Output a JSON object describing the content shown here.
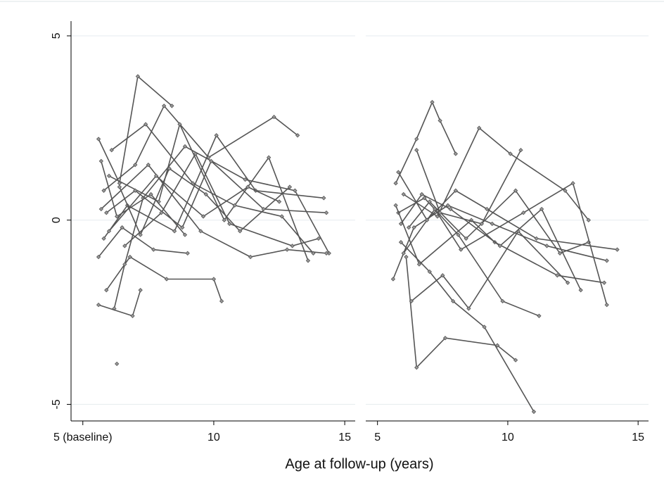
{
  "chart_data": [
    {
      "type": "line",
      "xlabel": "Age at follow-up (years)",
      "color": "#555555",
      "xlim": [
        4.55,
        15.4
      ],
      "xticks": [
        {
          "value": 5,
          "label": "5 (baseline)"
        },
        10,
        15
      ],
      "ylim": [
        -5.45,
        5.4
      ],
      "yticks": [
        5,
        0,
        -5
      ],
      "grid": true,
      "series": [
        {
          "x": [
            5.6,
            6.4,
            7.1,
            8.4
          ],
          "values": [
            2.2,
            1.0,
            3.9,
            3.1
          ]
        },
        {
          "x": [
            5.8,
            7.0,
            8.1,
            9.8,
            12.3,
            13.2
          ],
          "values": [
            0.8,
            1.5,
            3.1,
            1.7,
            2.8,
            2.3
          ]
        },
        {
          "x": [
            5.9,
            6.8,
            8.2,
            10.0,
            10.3
          ],
          "values": [
            -1.9,
            -1.0,
            -1.6,
            -1.6,
            -2.2
          ]
        },
        {
          "x": [
            6.2,
            6.6,
            7.3,
            8.9,
            11.2,
            13.1,
            14.4
          ],
          "values": [
            -2.4,
            -1.2,
            0.6,
            2.0,
            1.1,
            0.8,
            -0.9
          ]
        },
        {
          "x": [
            5.6,
            6.9,
            7.2
          ],
          "values": [
            -2.3,
            -2.6,
            -1.9
          ]
        },
        {
          "x": [
            6.3
          ],
          "values": [
            -3.9
          ]
        },
        {
          "x": [
            5.7,
            7.5,
            9.5,
            11.4,
            12.8,
            14.3
          ],
          "values": [
            0.3,
            1.5,
            -0.3,
            -1.0,
            -0.8,
            -0.9
          ]
        },
        {
          "x": [
            6.0,
            7.9,
            8.7,
            10.4,
            12.1,
            13.6
          ],
          "values": [
            1.2,
            0.5,
            2.6,
            0.0,
            1.7,
            -1.1
          ]
        },
        {
          "x": [
            5.8,
            6.7,
            8.5,
            10.1,
            11.6,
            14.2
          ],
          "values": [
            -0.5,
            0.4,
            -0.3,
            2.3,
            0.8,
            0.6
          ]
        },
        {
          "x": [
            6.1,
            7.4,
            9.2,
            10.8,
            12.6,
            13.8
          ],
          "values": [
            1.9,
            2.6,
            1.0,
            0.4,
            0.1,
            -0.9
          ]
        },
        {
          "x": [
            5.6,
            6.5,
            7.7,
            9.0
          ],
          "values": [
            -1.0,
            -0.2,
            -0.8,
            -0.9
          ]
        },
        {
          "x": [
            6.4,
            7.2,
            8.3,
            9.7,
            11.0,
            12.9
          ],
          "values": [
            0.9,
            -0.4,
            1.4,
            0.7,
            -0.3,
            0.9
          ]
        },
        {
          "x": [
            5.9,
            7.0,
            8.8,
            9.9,
            11.9,
            14.3
          ],
          "values": [
            0.2,
            0.8,
            -0.2,
            1.6,
            0.3,
            0.2
          ]
        },
        {
          "x": [
            6.6,
            8.0,
            9.3,
            10.6,
            13.0,
            14.0
          ],
          "values": [
            -0.7,
            0.2,
            1.8,
            -0.1,
            -0.7,
            -0.5
          ]
        },
        {
          "x": [
            5.7,
            6.3,
            7.6,
            8.9
          ],
          "values": [
            1.6,
            0.1,
            0.7,
            -0.4
          ]
        },
        {
          "x": [
            6.0,
            7.8,
            9.6,
            11.3,
            12.5
          ],
          "values": [
            -0.3,
            1.2,
            0.1,
            0.9,
            0.5
          ]
        }
      ]
    },
    {
      "type": "line",
      "color": "#555555",
      "xlim": [
        4.55,
        15.4
      ],
      "xticks": [
        5,
        10,
        15
      ],
      "ylim": [
        -5.45,
        5.4
      ],
      "grid": true,
      "series": [
        {
          "x": [
            5.7,
            6.5,
            7.1,
            7.4,
            8.0
          ],
          "values": [
            1.0,
            2.2,
            3.2,
            2.7,
            1.8
          ]
        },
        {
          "x": [
            5.9,
            7.0,
            7.9,
            9.1,
            11.0
          ],
          "values": [
            -0.6,
            -1.4,
            -2.2,
            -2.9,
            -5.2
          ]
        },
        {
          "x": [
            6.1,
            6.5,
            7.6,
            9.6,
            10.3
          ],
          "values": [
            -1.0,
            -4.0,
            -3.2,
            -3.4,
            -3.8
          ]
        },
        {
          "x": [
            5.8,
            6.8,
            8.1,
            9.8,
            11.2
          ],
          "values": [
            0.2,
            0.6,
            -0.4,
            -2.2,
            -2.6
          ]
        },
        {
          "x": [
            6.0,
            7.3,
            8.9,
            10.1,
            12.2,
            13.1
          ],
          "values": [
            0.7,
            0.1,
            2.5,
            1.8,
            0.8,
            0.0
          ]
        },
        {
          "x": [
            5.6,
            6.4,
            7.7,
            9.4,
            11.5,
            13.8
          ],
          "values": [
            -1.6,
            -0.2,
            0.4,
            -0.1,
            -0.7,
            -1.1
          ]
        },
        {
          "x": [
            6.2,
            7.0,
            8.4,
            10.3,
            12.0,
            13.1
          ],
          "values": [
            -0.2,
            0.5,
            -0.5,
            0.8,
            -0.9,
            -0.6
          ]
        },
        {
          "x": [
            5.7,
            6.6,
            8.6,
            9.5,
            11.9,
            13.7
          ],
          "values": [
            0.4,
            -1.2,
            0.0,
            -0.6,
            -1.5,
            -1.7
          ]
        },
        {
          "x": [
            6.0,
            7.2,
            8.2,
            10.6,
            12.5,
            13.8
          ],
          "values": [
            -0.9,
            0.3,
            -0.8,
            0.2,
            1.0,
            -2.3
          ]
        },
        {
          "x": [
            5.8,
            6.9,
            8.0,
            9.2,
            11.1,
            14.2
          ],
          "values": [
            1.3,
            0.0,
            0.8,
            0.3,
            -0.5,
            -0.8
          ]
        },
        {
          "x": [
            6.3,
            7.5,
            8.5,
            10.4,
            12.3
          ],
          "values": [
            -2.2,
            -1.5,
            -2.4,
            -0.3,
            -1.7
          ]
        },
        {
          "x": [
            5.9,
            6.7,
            7.8,
            9.7,
            11.3,
            12.8
          ],
          "values": [
            -0.1,
            0.7,
            0.3,
            -0.7,
            0.3,
            -1.9
          ]
        },
        {
          "x": [
            6.5,
            7.4,
            9.0,
            10.5
          ],
          "values": [
            1.9,
            0.2,
            -0.1,
            1.9
          ]
        }
      ]
    }
  ]
}
